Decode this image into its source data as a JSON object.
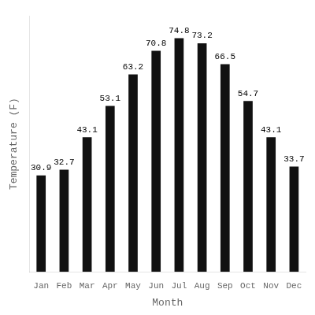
{
  "chart_data": {
    "type": "bar",
    "categories": [
      "Jan",
      "Feb",
      "Mar",
      "Apr",
      "May",
      "Jun",
      "Jul",
      "Aug",
      "Sep",
      "Oct",
      "Nov",
      "Dec"
    ],
    "values": [
      30.9,
      32.7,
      43.1,
      53.1,
      63.2,
      70.8,
      74.8,
      73.2,
      66.5,
      54.7,
      43.1,
      33.7
    ],
    "color": "#111111",
    "xlabel": "Month",
    "ylabel": "Temperature (F)",
    "ylim": [
      0,
      82
    ],
    "grid": false,
    "data_labels": true,
    "tick_labels": "x"
  }
}
